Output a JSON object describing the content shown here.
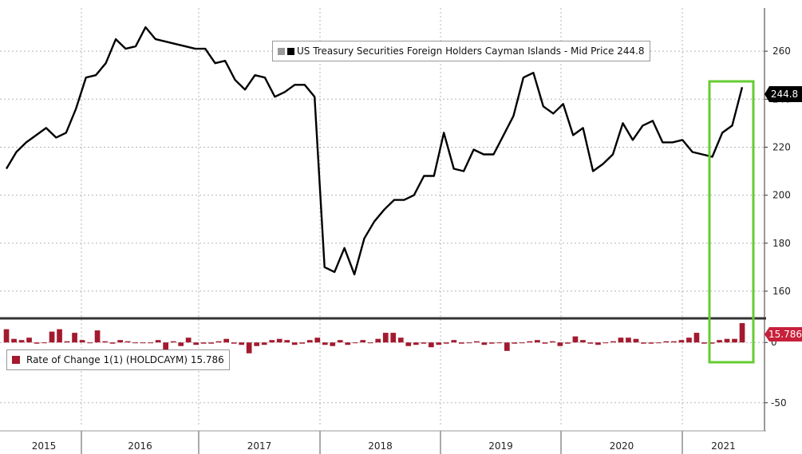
{
  "chart_data": [
    {
      "type": "line",
      "legend": "US Treasury Securities Foreign Holders Cayman Islands - Mid Price 244.8",
      "last_value_label": "244.8",
      "colors": {
        "line": "#000000",
        "highlight": "#66cc33"
      },
      "ylim": [
        150,
        278
      ],
      "yticks": [
        160,
        180,
        200,
        220,
        240,
        260
      ],
      "grid": true,
      "values": [
        211,
        218,
        222,
        225,
        228,
        224,
        226,
        236,
        249,
        250,
        255,
        265,
        261,
        262,
        270,
        265,
        264,
        263,
        262,
        261,
        261,
        255,
        256,
        248,
        244,
        250,
        249,
        241,
        243,
        246,
        246,
        241,
        170,
        168,
        178,
        167,
        182,
        189,
        194,
        198,
        198,
        200,
        208,
        208,
        226,
        211,
        210,
        219,
        217,
        217,
        225,
        233,
        249,
        251,
        237,
        234,
        238,
        225,
        228,
        210,
        213,
        217,
        230,
        223,
        229,
        231,
        222,
        222,
        223,
        218,
        217,
        216,
        226,
        229,
        245
      ]
    },
    {
      "type": "bar",
      "legend": "Rate of Change 1(1) (HOLDCAYM) 15.786",
      "last_value_label": "15.786",
      "colors": {
        "bar": "#a31a2e"
      },
      "ylim": [
        -70,
        18
      ],
      "yticks": [
        0,
        -50
      ],
      "grid": true,
      "values": [
        11,
        3,
        2,
        4,
        -1,
        0,
        9,
        11,
        1,
        8,
        2,
        0,
        10,
        1,
        -1,
        2,
        1,
        0,
        0,
        0,
        2,
        -6,
        1,
        -3,
        4,
        -2,
        -1,
        -1,
        1,
        3,
        -1,
        -2,
        -9,
        -3,
        -2,
        2,
        3,
        2,
        -2,
        -1,
        2,
        4,
        -2,
        -3,
        2,
        -2,
        0,
        2,
        0,
        3,
        8,
        8,
        4,
        -3,
        -2,
        -1,
        -4,
        -2,
        -1,
        2,
        -1,
        0,
        1,
        -2,
        -1,
        0,
        -7,
        -1,
        0,
        1,
        2,
        -1,
        1,
        -3,
        -1,
        5,
        2,
        -1,
        -2,
        0,
        1,
        4,
        4,
        3,
        -1,
        -1,
        0,
        1,
        1,
        2,
        4,
        8,
        -1,
        -1,
        2,
        3,
        3,
        16
      ]
    }
  ],
  "x_axis": {
    "labels": [
      "2015",
      "2016",
      "2017",
      "2018",
      "2019",
      "2020",
      "2021"
    ]
  }
}
